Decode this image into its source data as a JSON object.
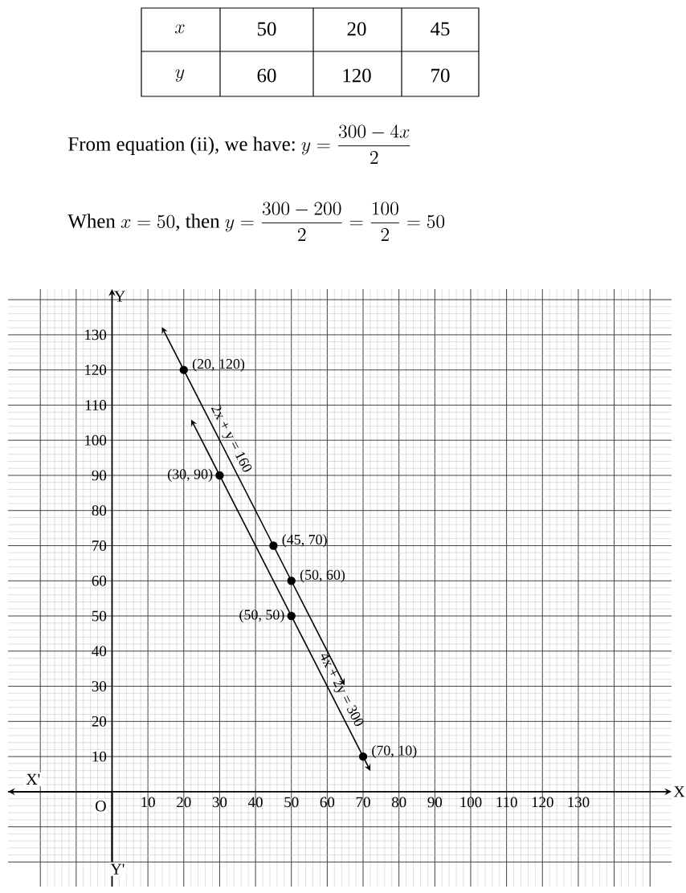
{
  "chart_data": {
    "type": "line",
    "xlabel": "X",
    "ylabel": "Y",
    "series": [
      {
        "name": "2x + y = 160",
        "color": "#000000",
        "x": [
          20,
          45,
          50
        ],
        "values": [
          120,
          70,
          60
        ]
      },
      {
        "name": "4x + 2y = 300",
        "color": "#000000",
        "x": [
          30,
          50,
          70
        ],
        "values": [
          90,
          50,
          10
        ]
      }
    ],
    "xlim": [
      -29,
      156
    ],
    "ylim": [
      -27,
      143
    ],
    "xticks": [
      {
        "value": -20,
        "label": null
      },
      {
        "value": -10,
        "label": null
      },
      {
        "value": 0,
        "label": null
      },
      10,
      20,
      30,
      40,
      50,
      60,
      70,
      80,
      90,
      100,
      110,
      120,
      130,
      {
        "value": 140,
        "label": null
      },
      {
        "value": 150,
        "label": null
      }
    ],
    "yticks": [
      {
        "value": -20,
        "label": null
      },
      {
        "value": -10,
        "label": null
      },
      {
        "value": 0,
        "label": null
      },
      10,
      20,
      30,
      40,
      50,
      60,
      70,
      80,
      90,
      100,
      110,
      120,
      130,
      {
        "value": 140,
        "label": null
      }
    ],
    "grid": true,
    "marker": "circle",
    "annotations": [
      "x",
      "50",
      "20",
      "45",
      "y",
      "60",
      "120",
      "70",
      "From equation (ii), we have:",
      "y = \\frac{300-4x}{2}",
      "When",
      "x = 50",
      ", then",
      "y = \\frac{300-200}{2} = \\frac{100}{2} = 50",
      "X'",
      "Y'",
      "O",
      {
        "text": "(20, 120)",
        "x": 20,
        "y": 120
      },
      {
        "text": "(45, 70)",
        "x": 45,
        "y": 70
      },
      {
        "text": "(50, 60)",
        "x": 50,
        "y": 60
      },
      {
        "text": "(30, 90)",
        "x": 30,
        "y": 90
      },
      {
        "text": "(50, 50)",
        "x": 50,
        "y": 50
      },
      {
        "text": "(70, 10)",
        "x": 70,
        "y": 10
      }
    ]
  }
}
